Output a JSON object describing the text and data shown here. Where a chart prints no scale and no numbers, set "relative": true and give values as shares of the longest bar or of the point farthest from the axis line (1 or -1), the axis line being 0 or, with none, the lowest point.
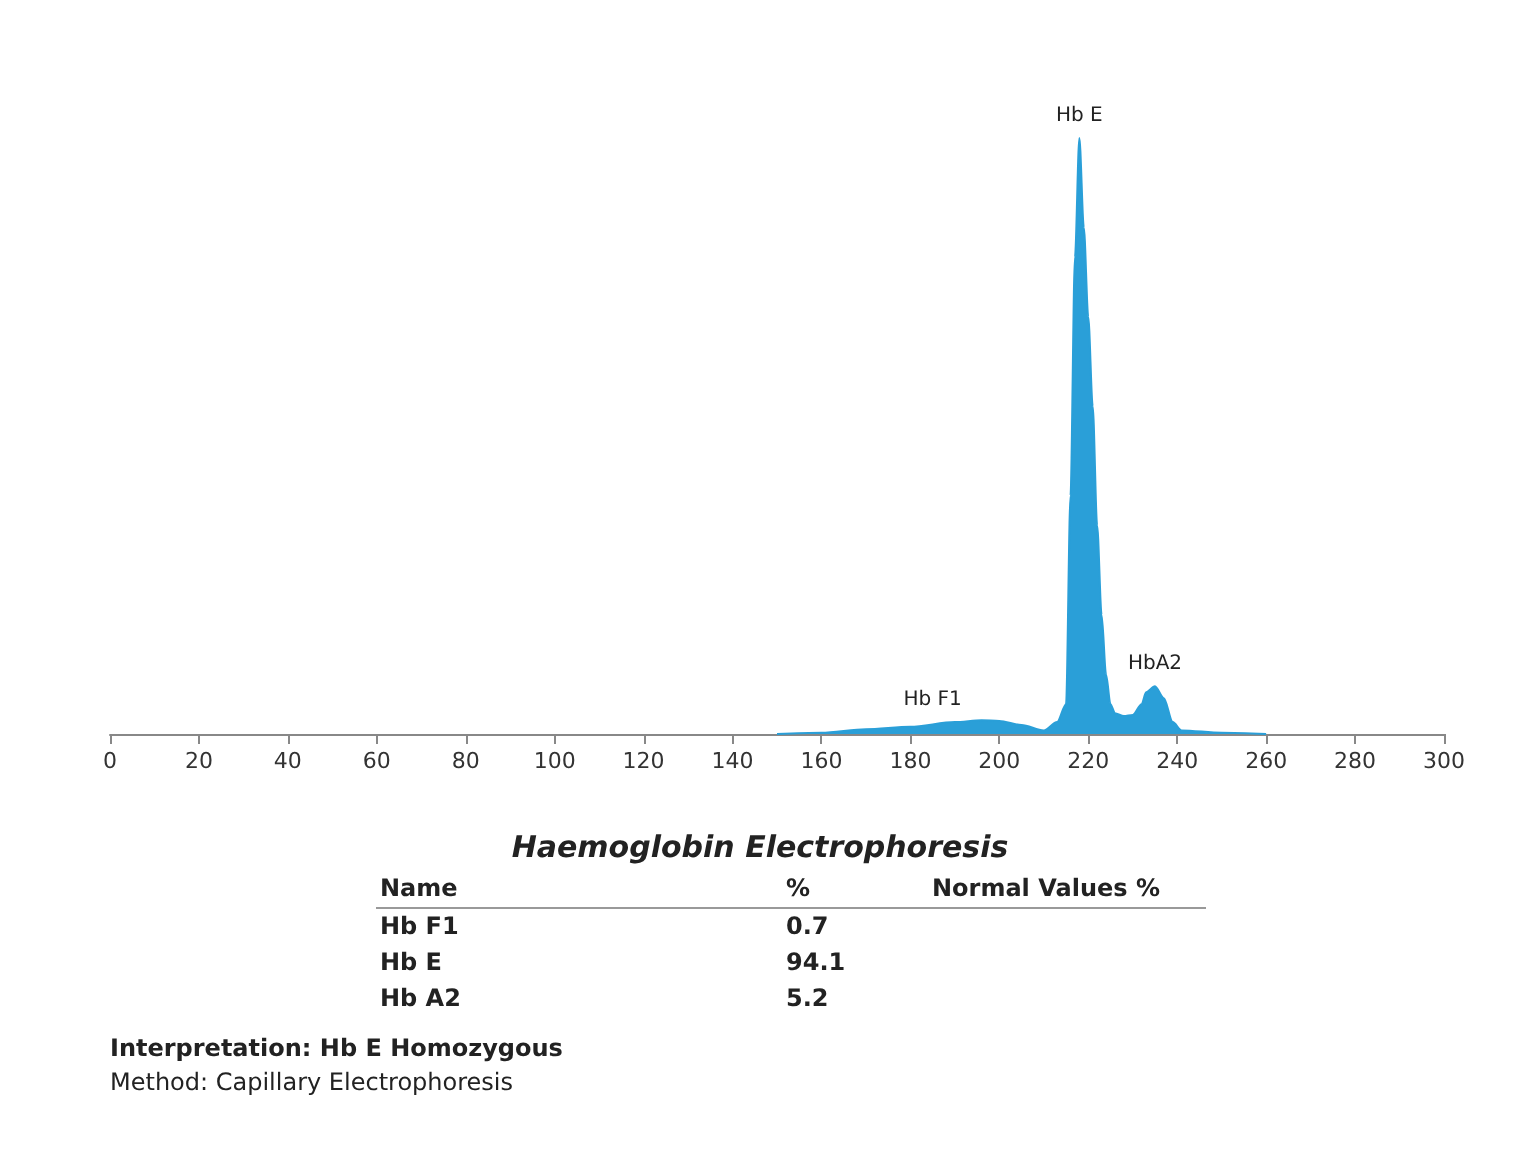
{
  "chart_data": {
    "type": "area",
    "relative": true,
    "title": "Haemoglobin Electrophoresis",
    "x": [
      150,
      160,
      170,
      180,
      190,
      196,
      200,
      205,
      210,
      213,
      215,
      216,
      217,
      218,
      219,
      220,
      221,
      222,
      223,
      224,
      225,
      226,
      228,
      230,
      232,
      233,
      235,
      237,
      239,
      241,
      250,
      260
    ],
    "values": [
      0,
      0.002,
      0.008,
      0.012,
      0.02,
      0.023,
      0.022,
      0.015,
      0.006,
      0.02,
      0.05,
      0.4,
      0.8,
      1,
      0.85,
      0.7,
      0.55,
      0.35,
      0.2,
      0.1,
      0.05,
      0.035,
      0.03,
      0.032,
      0.05,
      0.07,
      0.08,
      0.06,
      0.02,
      0.006,
      0.002,
      0
    ],
    "color": "#2a9fd8",
    "xlim": [
      0,
      300
    ],
    "xticks": [
      0,
      20,
      40,
      60,
      80,
      100,
      120,
      140,
      160,
      180,
      200,
      220,
      240,
      260,
      280,
      300
    ],
    "grid": false,
    "annotations": [
      {
        "text": "Hb F1",
        "x": 185,
        "y": 0.02
      },
      {
        "text": "Hb E",
        "x": 218,
        "y": 1
      },
      {
        "text": "HbA2",
        "x": 235,
        "y": 0.08
      },
      "Name",
      "%",
      "Normal Values %",
      "Hb F1",
      "0.7",
      "Hb E",
      "94.1",
      "Hb A2",
      "5.2",
      "Interpretation: Hb E Homozygous",
      "Method: Capillary Electrophoresis"
    ]
  }
}
